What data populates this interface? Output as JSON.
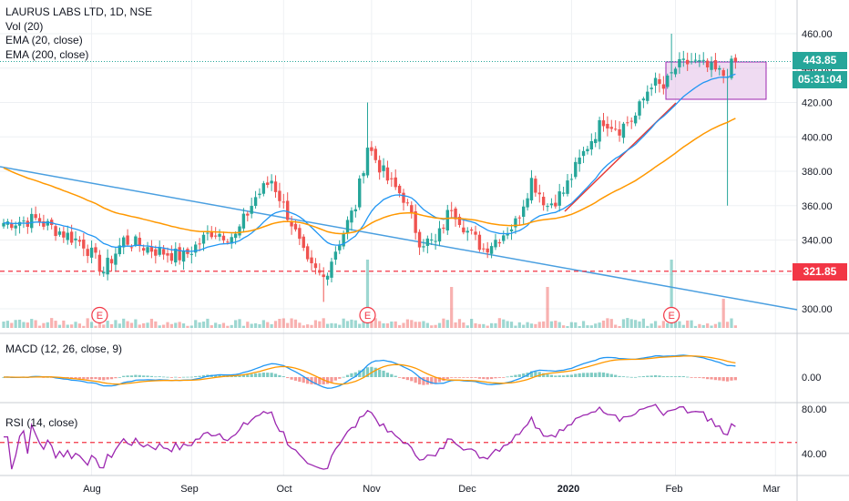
{
  "legend": {
    "title": "LAURUS LABS LTD, 1D, NSE",
    "vol": "Vol (20)",
    "ema20": "EMA (20, close)",
    "ema200": "EMA (200, close)"
  },
  "macd": {
    "title": "MACD (12, 26, close, 9)"
  },
  "rsi": {
    "title": "RSI (14, close)"
  },
  "badges": {
    "last_price": "443.85",
    "countdown": "05:31:04",
    "support": "321.85"
  },
  "colors": {
    "up": "#26a69a",
    "down": "#ef5350",
    "ema20": "#2196f3",
    "ema200": "#ff9800",
    "trend_blue": "#4a9fe0",
    "trend_red": "#e53935",
    "rsi_line": "#9c27b0",
    "box_fill": "#e1bee7",
    "box_stroke": "#9c27b0",
    "support": "#f23645",
    "price_line": "#26a69a"
  },
  "chart_data": {
    "type": "candlestick",
    "x_ticks": [
      "Aug",
      "Sep",
      "Oct",
      "Nov",
      "Dec",
      "2020",
      "Feb",
      "Mar"
    ],
    "price_axis": {
      "ticks": [
        "460.00",
        "440.00",
        "420.00",
        "400.00",
        "380.00",
        "360.00",
        "340.00",
        "320.00",
        "300.00"
      ],
      "range": [
        290,
        472
      ]
    },
    "macd_axis": {
      "ticks": [
        "0.00"
      ]
    },
    "rsi_axis": {
      "ticks": [
        "80.00",
        "40.00"
      ],
      "dashed_level": 50
    },
    "earnings_markers": [
      "E",
      "E",
      "E"
    ],
    "last_price": 443.85,
    "support_level": 321.85,
    "anchors": [
      {
        "i": 0,
        "p": 350
      },
      {
        "i": 8,
        "p": 352
      },
      {
        "i": 14,
        "p": 345
      },
      {
        "i": 20,
        "p": 338
      },
      {
        "i": 25,
        "p": 322
      },
      {
        "i": 30,
        "p": 340
      },
      {
        "i": 38,
        "p": 334
      },
      {
        "i": 45,
        "p": 330
      },
      {
        "i": 52,
        "p": 345
      },
      {
        "i": 58,
        "p": 342
      },
      {
        "i": 63,
        "p": 365
      },
      {
        "i": 67,
        "p": 375
      },
      {
        "i": 72,
        "p": 350
      },
      {
        "i": 76,
        "p": 325
      },
      {
        "i": 80,
        "p": 318
      },
      {
        "i": 84,
        "p": 340
      },
      {
        "i": 88,
        "p": 360
      },
      {
        "i": 91,
        "p": 395
      },
      {
        "i": 96,
        "p": 375
      },
      {
        "i": 100,
        "p": 365
      },
      {
        "i": 104,
        "p": 340
      },
      {
        "i": 108,
        "p": 338
      },
      {
        "i": 112,
        "p": 360
      },
      {
        "i": 116,
        "p": 345
      },
      {
        "i": 120,
        "p": 335
      },
      {
        "i": 124,
        "p": 342
      },
      {
        "i": 128,
        "p": 350
      },
      {
        "i": 132,
        "p": 375
      },
      {
        "i": 136,
        "p": 360
      },
      {
        "i": 140,
        "p": 368
      },
      {
        "i": 146,
        "p": 395
      },
      {
        "i": 150,
        "p": 410
      },
      {
        "i": 154,
        "p": 405
      },
      {
        "i": 158,
        "p": 412
      },
      {
        "i": 162,
        "p": 432
      },
      {
        "i": 165,
        "p": 428
      },
      {
        "i": 168,
        "p": 440
      },
      {
        "i": 172,
        "p": 444
      },
      {
        "i": 176,
        "p": 440
      },
      {
        "i": 180,
        "p": 436
      },
      {
        "i": 183,
        "p": 443.85
      }
    ]
  }
}
